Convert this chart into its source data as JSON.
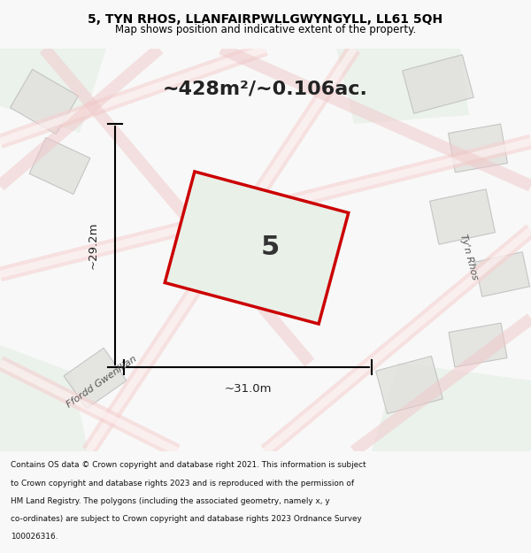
{
  "title_line1": "5, TYN RHOS, LLANFAIRPWLLGWYNGYLL, LL61 5QH",
  "title_line2": "Map shows position and indicative extent of the property.",
  "area_text": "~428m²/~0.106ac.",
  "property_number": "5",
  "dim_width": "~31.0m",
  "dim_height": "~29.2m",
  "footer_text": "Contains OS data © Crown copyright and database right 2021. This information is subject to Crown copyright and database rights 2023 and is reproduced with the permission of HM Land Registry. The polygons (including the associated geometry, namely x, y co-ordinates) are subject to Crown copyright and database rights 2023 Ordnance Survey 100026316.",
  "bg_color": "#f0f0f0",
  "map_bg_color": "#f5f5f0",
  "property_fill": "#e8f0e8",
  "property_edge": "#cc0000",
  "street_label_ffordd": "Ffordd Gwenllian",
  "street_label_tyn": "Ty'n Rhos",
  "background_buildings_color": "#e8e8e8",
  "road_color": "#ffffff",
  "green_area_color": "#e0ebe0"
}
